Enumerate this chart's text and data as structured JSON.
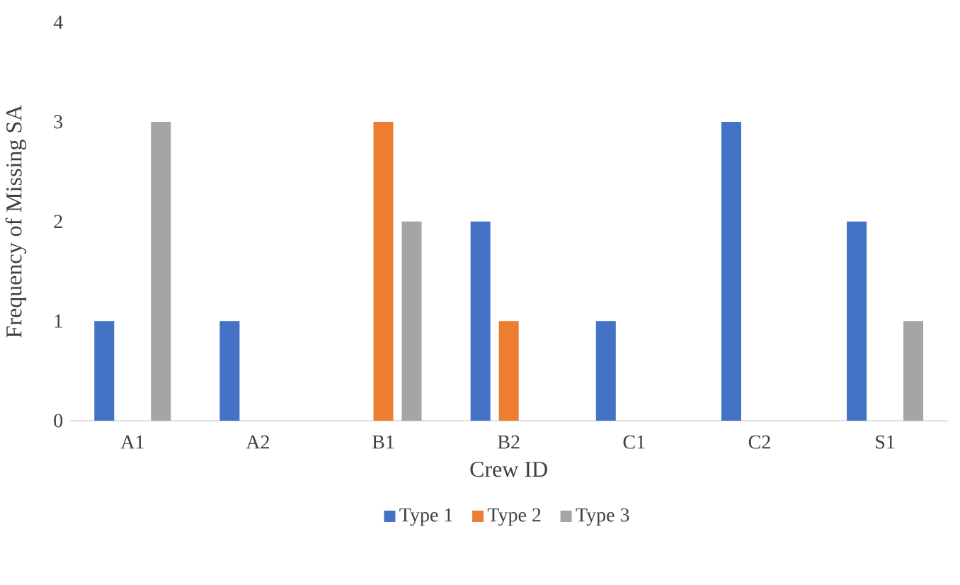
{
  "chart_data": {
    "type": "bar",
    "xlabel": "Crew ID",
    "ylabel": "Frequency of Missing SA",
    "categories": [
      "A1",
      "A2",
      "B1",
      "B2",
      "C1",
      "C2",
      "S1"
    ],
    "series": [
      {
        "name": "Type 1",
        "color": "#4472c4",
        "values": [
          1,
          1,
          0,
          2,
          1,
          3,
          2
        ]
      },
      {
        "name": "Type 2",
        "color": "#ed7d31",
        "values": [
          0,
          0,
          3,
          1,
          0,
          0,
          0
        ]
      },
      {
        "name": "Type 3",
        "color": "#a5a5a5",
        "values": [
          3,
          0,
          2,
          0,
          0,
          0,
          1
        ]
      }
    ],
    "ylim": [
      0,
      4
    ],
    "yticks": [
      0,
      1,
      2,
      3,
      4
    ],
    "grid": false,
    "legend": "bottom"
  }
}
